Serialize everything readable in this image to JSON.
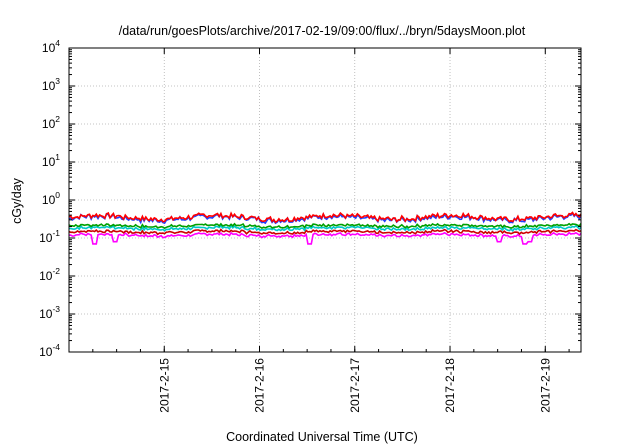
{
  "chart_data": {
    "type": "line",
    "title": "/data/run/goesPlots/archive/2017-02-19/09:00/flux/../bryn/5daysMoon.plot",
    "xlabel": "Coordinated Universal Time (UTC)",
    "ylabel": "cGy/day",
    "yscale": "log",
    "ylim": [
      0.0001,
      10000
    ],
    "y_ticks": [
      {
        "base": "10",
        "exp": "-4"
      },
      {
        "base": "10",
        "exp": "-3"
      },
      {
        "base": "10",
        "exp": "-2"
      },
      {
        "base": "10",
        "exp": "-1"
      },
      {
        "base": "10",
        "exp": "0"
      },
      {
        "base": "10",
        "exp": "1"
      },
      {
        "base": "10",
        "exp": "2"
      },
      {
        "base": "10",
        "exp": "3"
      },
      {
        "base": "10",
        "exp": "4"
      }
    ],
    "xlim": [
      "2017-02-14T00:00",
      "2017-02-19T09:00"
    ],
    "x_ticks": [
      "2017-2-15",
      "2017-2-16",
      "2017-2-17",
      "2017-2-18",
      "2017-2-19"
    ],
    "grid": true,
    "series": [
      {
        "color": "#ff00ff",
        "approx_level": 0.12,
        "dips": [
          [
            0.05,
            0.07
          ],
          [
            0.09,
            0.08
          ],
          [
            0.47,
            0.07
          ],
          [
            0.84,
            0.08
          ],
          [
            0.89,
            0.07
          ],
          [
            0.9,
            0.08
          ]
        ]
      },
      {
        "color": "#cc0000",
        "approx_level": 0.145
      },
      {
        "color": "#00c8c8",
        "approx_level": 0.18
      },
      {
        "color": "#00a000",
        "approx_level": 0.21
      },
      {
        "color": "#2040ff",
        "approx_level": 0.33
      },
      {
        "color": "#ff0000",
        "approx_level": 0.35
      }
    ]
  }
}
